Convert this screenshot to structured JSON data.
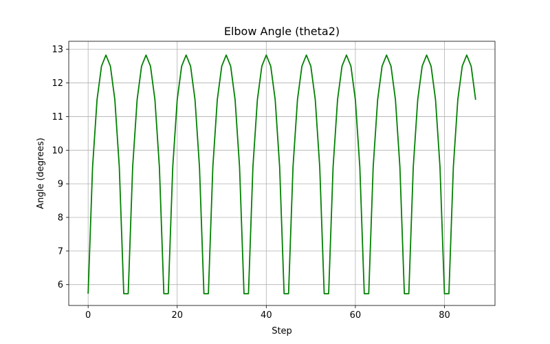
{
  "chart_data": {
    "type": "line",
    "title": "Elbow Angle (theta2)",
    "xlabel": "Step",
    "ylabel": "Angle (degrees)",
    "xlim": [
      -4.35,
      91.35
    ],
    "ylim": [
      5.38,
      13.24
    ],
    "xticks": [
      0,
      20,
      40,
      60,
      80
    ],
    "yticks": [
      6,
      7,
      8,
      9,
      10,
      11,
      12,
      13
    ],
    "grid": true,
    "series": [
      {
        "color": "#008000",
        "x": [
          0,
          1,
          2,
          3,
          4,
          5,
          6,
          7,
          8,
          9,
          10,
          11,
          12,
          13,
          14,
          15,
          16,
          17,
          18,
          19,
          20,
          21,
          22,
          23,
          24,
          25,
          26,
          27,
          28,
          29,
          30,
          31,
          32,
          33,
          34,
          35,
          36,
          37,
          38,
          39,
          40,
          41,
          42,
          43,
          44,
          45,
          46,
          47,
          48,
          49,
          50,
          51,
          52,
          53,
          54,
          55,
          56,
          57,
          58,
          59,
          60,
          61,
          62,
          63,
          64,
          65,
          66,
          67,
          68,
          69,
          70,
          71,
          72,
          73,
          74,
          75,
          76,
          77,
          78,
          79,
          80,
          81,
          82,
          83,
          84,
          85,
          86,
          87
        ],
        "y": [
          5.73,
          9.5,
          11.5,
          12.5,
          12.83,
          12.5,
          11.5,
          9.5,
          5.73,
          5.73,
          9.5,
          11.5,
          12.5,
          12.83,
          12.5,
          11.5,
          9.5,
          5.73,
          5.73,
          9.5,
          11.5,
          12.5,
          12.83,
          12.5,
          11.5,
          9.5,
          5.73,
          5.73,
          9.5,
          11.5,
          12.5,
          12.83,
          12.5,
          11.5,
          9.5,
          5.73,
          5.73,
          9.5,
          11.5,
          12.5,
          12.83,
          12.5,
          11.5,
          9.5,
          5.73,
          5.73,
          9.5,
          11.5,
          12.5,
          12.83,
          12.5,
          11.5,
          9.5,
          5.73,
          5.73,
          9.5,
          11.5,
          12.5,
          12.83,
          12.5,
          11.5,
          9.5,
          5.73,
          5.73,
          9.5,
          11.5,
          12.5,
          12.83,
          12.5,
          11.5,
          9.5,
          5.73,
          5.73,
          9.5,
          11.5,
          12.5,
          12.83,
          12.5,
          11.5,
          9.5,
          5.73,
          5.73,
          9.5,
          11.5,
          12.5,
          12.83,
          12.5,
          11.5
        ]
      }
    ]
  }
}
